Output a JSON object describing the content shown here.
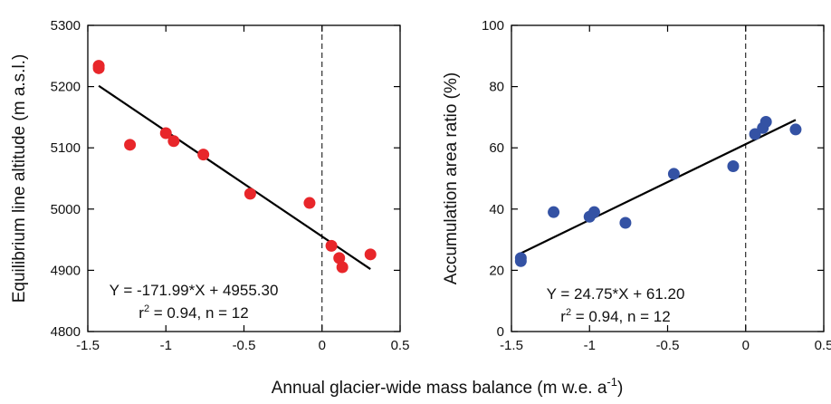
{
  "chart_data": [
    {
      "type": "scatter",
      "ylabel": "Equilibrium line altitude (m a.s.l.)",
      "xlim": [
        -1.5,
        0.5
      ],
      "ylim": [
        4800,
        5300
      ],
      "xticks": [
        "-1.5",
        "-1",
        "-0.5",
        "0",
        "0.5"
      ],
      "yticks": [
        "4800",
        "4900",
        "5000",
        "5100",
        "5200",
        "5300"
      ],
      "xtick_values": [
        -1.5,
        -1,
        -0.5,
        0,
        0.5
      ],
      "ytick_values": [
        4800,
        4900,
        5000,
        5100,
        5200,
        5300
      ],
      "marker_color": "#e8262a",
      "points": [
        {
          "x": -1.43,
          "y": 5234
        },
        {
          "x": -1.43,
          "y": 5230
        },
        {
          "x": -1.23,
          "y": 5105
        },
        {
          "x": -1.0,
          "y": 5124
        },
        {
          "x": -0.95,
          "y": 5111
        },
        {
          "x": -0.76,
          "y": 5089
        },
        {
          "x": -0.46,
          "y": 5025
        },
        {
          "x": -0.08,
          "y": 5010
        },
        {
          "x": 0.06,
          "y": 4940
        },
        {
          "x": 0.11,
          "y": 4920
        },
        {
          "x": 0.13,
          "y": 4905
        },
        {
          "x": 0.31,
          "y": 4926
        }
      ],
      "fit": {
        "slope": -171.99,
        "intercept": 4955.3,
        "x_range": [
          -1.43,
          0.31
        ]
      },
      "reference_line_x": 0,
      "equation_line1": "Y = -171.99*X + 4955.30",
      "equation_line2_prefix": "r",
      "equation_line2_sup": "2",
      "equation_line2_suffix": " = 0.94, n = 12"
    },
    {
      "type": "scatter",
      "ylabel": "Accumulation area ratio (%)",
      "xlim": [
        -1.5,
        0.5
      ],
      "ylim": [
        0,
        100
      ],
      "xticks": [
        "-1.5",
        "-1",
        "-0.5",
        "0",
        "0.5"
      ],
      "yticks": [
        "0",
        "20",
        "40",
        "60",
        "80",
        "100"
      ],
      "xtick_values": [
        -1.5,
        -1,
        -0.5,
        0,
        0.5
      ],
      "ytick_values": [
        0,
        20,
        40,
        60,
        80,
        100
      ],
      "marker_color": "#3452a4",
      "points": [
        {
          "x": -1.44,
          "y": 23
        },
        {
          "x": -1.44,
          "y": 24
        },
        {
          "x": -1.23,
          "y": 39
        },
        {
          "x": -1.0,
          "y": 37.5
        },
        {
          "x": -0.97,
          "y": 39
        },
        {
          "x": -0.77,
          "y": 35.5
        },
        {
          "x": -0.46,
          "y": 51.5
        },
        {
          "x": -0.08,
          "y": 54
        },
        {
          "x": 0.06,
          "y": 64.5
        },
        {
          "x": 0.11,
          "y": 66.5
        },
        {
          "x": 0.13,
          "y": 68.5
        },
        {
          "x": 0.32,
          "y": 66
        }
      ],
      "fit": {
        "slope": 24.75,
        "intercept": 61.2,
        "x_range": [
          -1.44,
          0.32
        ]
      },
      "reference_line_x": 0,
      "equation_line1": "Y = 24.75*X + 61.20",
      "equation_line2_prefix": "r",
      "equation_line2_sup": "2",
      "equation_line2_suffix": " = 0.94, n = 12"
    }
  ],
  "shared_xlabel_prefix": "Annual glacier-wide mass balance (m w.e. a",
  "shared_xlabel_sup": "-1",
  "shared_xlabel_suffix": ")"
}
